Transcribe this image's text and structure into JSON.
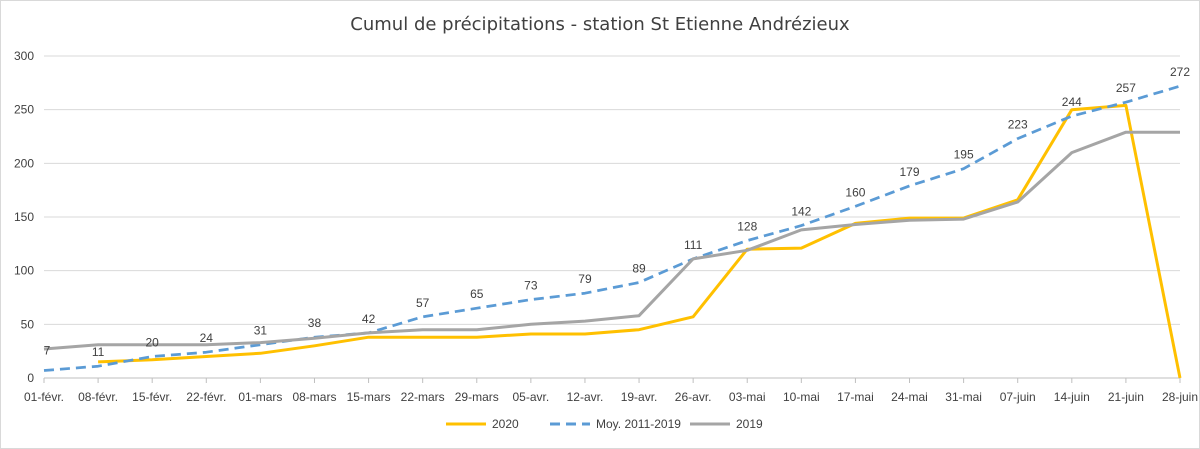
{
  "chart_data": {
    "type": "line",
    "title": "Cumul de précipitations - station St Etienne Andrézieux",
    "categories": [
      "01-févr.",
      "08-févr.",
      "15-févr.",
      "22-févr.",
      "01-mars",
      "08-mars",
      "15-mars",
      "22-mars",
      "29-mars",
      "05-avr.",
      "12-avr.",
      "19-avr.",
      "26-avr.",
      "03-mai",
      "10-mai",
      "17-mai",
      "24-mai",
      "31-mai",
      "07-juin",
      "14-juin",
      "21-juin",
      "28-juin"
    ],
    "ylim": [
      0,
      300
    ],
    "yticks": [
      0,
      50,
      100,
      150,
      200,
      250,
      300
    ],
    "grid": true,
    "legend_position": "bottom",
    "series": [
      {
        "name": "2020",
        "color": "#FFC000",
        "dash": false,
        "values": [
          null,
          15,
          17,
          20,
          23,
          30,
          38,
          38,
          38,
          41,
          41,
          45,
          57,
          120,
          121,
          144,
          149,
          149,
          166,
          250,
          254,
          0
        ],
        "labels": []
      },
      {
        "name": "Moy. 2011-2019",
        "color": "#5B9BD5",
        "dash": true,
        "values": [
          7,
          11,
          20,
          24,
          31,
          38,
          42,
          57,
          65,
          73,
          79,
          89,
          111,
          128,
          142,
          160,
          179,
          195,
          223,
          244,
          257,
          272
        ],
        "labels": [
          "7",
          "11",
          "20",
          "24",
          "31",
          "38",
          "42",
          "57",
          "65",
          "73",
          "79",
          "89",
          "111",
          "128",
          "142",
          "160",
          "179",
          "195",
          "223",
          "244",
          "257",
          "272"
        ]
      },
      {
        "name": "2019",
        "color": "#A5A5A5",
        "dash": false,
        "values": [
          27,
          31,
          31,
          31,
          33,
          37,
          42,
          45,
          45,
          50,
          53,
          58,
          111,
          119,
          138,
          143,
          147,
          148,
          164,
          210,
          229,
          229
        ],
        "labels": []
      }
    ]
  }
}
